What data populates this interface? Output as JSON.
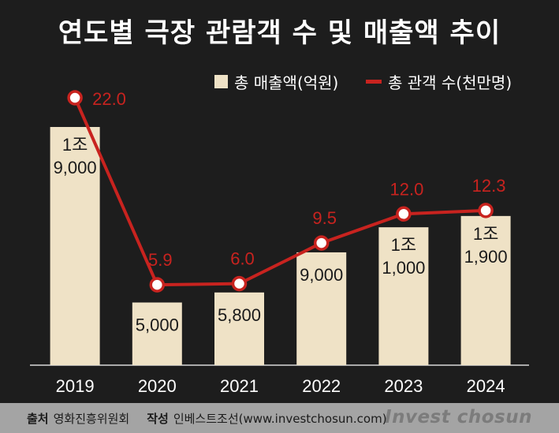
{
  "title": "연도별 극장 관람객 수 및 매출액 추이",
  "legend": {
    "bar_label": "총 매출액(억원)",
    "line_label": "총 관객 수(천만명)"
  },
  "chart_data": {
    "type": "bar",
    "categories": [
      "2019",
      "2020",
      "2021",
      "2022",
      "2023",
      "2024"
    ],
    "series": [
      {
        "name": "총 매출액(억원)",
        "type": "bar",
        "values": [
          19000,
          5000,
          5800,
          9000,
          11000,
          11900
        ],
        "labels": [
          [
            "1조",
            "9,000"
          ],
          [
            "5,000"
          ],
          [
            "5,800"
          ],
          [
            "9,000"
          ],
          [
            "1조",
            "1,000"
          ],
          [
            "1조",
            "1,900"
          ]
        ],
        "color": "#efe2c6"
      },
      {
        "name": "총 관객 수(천만명)",
        "type": "line",
        "values": [
          22.0,
          5.9,
          6.0,
          9.5,
          12.0,
          12.3
        ],
        "labels": [
          "22.0",
          "5.9",
          "6.0",
          "9.5",
          "12.0",
          "12.3"
        ],
        "color": "#c8231f"
      }
    ],
    "legend_position": "top-right",
    "grid": false
  },
  "footer": {
    "source_label": "출처",
    "source_value": "영화진흥위원회",
    "author_label": "작성",
    "author_value": "인베스트조선(www.investchosun.com)",
    "brand": "Invest chosun"
  }
}
